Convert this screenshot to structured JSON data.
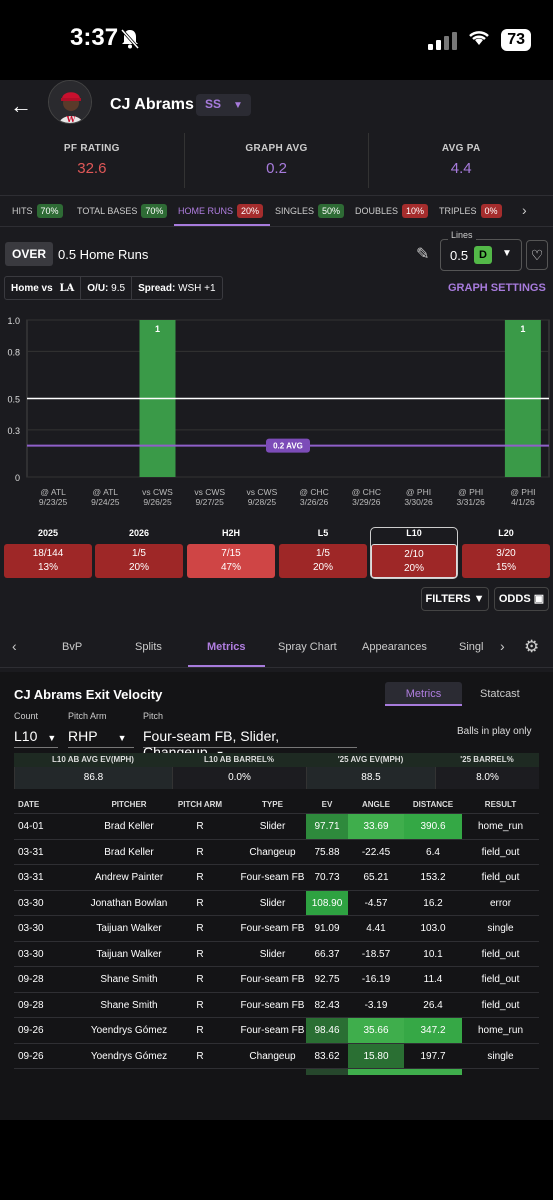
{
  "status": {
    "time": "3:37",
    "battery": "73"
  },
  "player": {
    "name": "CJ Abrams",
    "position": "SS"
  },
  "stats": [
    {
      "label": "PF RATING",
      "value": "32.6",
      "color": "#e05757"
    },
    {
      "label": "GRAPH AVG",
      "value": "0.2",
      "color": "#a77bdc"
    },
    {
      "label": "AVG PA",
      "value": "4.4",
      "color": "#a77bdc"
    }
  ],
  "prop_tabs": [
    {
      "label": "HITS",
      "pct": "70%",
      "tone": "green"
    },
    {
      "label": "TOTAL BASES",
      "pct": "70%",
      "tone": "green"
    },
    {
      "label": "HOME RUNS",
      "pct": "20%",
      "tone": "red",
      "active": true
    },
    {
      "label": "SINGLES",
      "pct": "50%",
      "tone": "green"
    },
    {
      "label": "DOUBLES",
      "pct": "10%",
      "tone": "red"
    },
    {
      "label": "TRIPLES",
      "pct": "0%",
      "tone": "red"
    }
  ],
  "line": {
    "side": "OVER",
    "text": "0.5 Home Runs",
    "lines_label": "Lines",
    "value": "0.5"
  },
  "game": {
    "home": "Home vs",
    "ou_label": "O/U:",
    "ou": "9.5",
    "spread_label": "Spread:",
    "spread": "WSH +1"
  },
  "graph_settings": "GRAPH SETTINGS",
  "chart_data": {
    "type": "bar",
    "categories": [
      "@ ATL 9/23/25",
      "@ ATL 9/24/25",
      "vs CWS 9/26/25",
      "vs CWS 9/27/25",
      "vs CWS 9/28/25",
      "@ CHC 3/26/26",
      "@ CHC 3/29/26",
      "@ PHI 3/30/26",
      "@ PHI 3/31/26",
      "@ PHI 4/1/26"
    ],
    "cat_top": [
      "@ ATL",
      "@ ATL",
      "vs CWS",
      "vs CWS",
      "vs CWS",
      "@ CHC",
      "@ CHC",
      "@ PHI",
      "@ PHI",
      "@ PHI"
    ],
    "cat_bottom": [
      "9/23/25",
      "9/24/25",
      "9/26/25",
      "9/27/25",
      "9/28/25",
      "3/26/26",
      "3/29/26",
      "3/30/26",
      "3/31/26",
      "4/1/26"
    ],
    "values": [
      0,
      0,
      1,
      0,
      0,
      0,
      0,
      0,
      0,
      1
    ],
    "yticks": [
      "0",
      "0.3",
      "0.5",
      "0.8",
      "1.0"
    ],
    "ylim": [
      0,
      1
    ],
    "line_value": 0.5,
    "avg_value": 0.2,
    "avg_label": "0.2 AVG",
    "bar_color": "#3a9a48"
  },
  "summary": [
    {
      "label": "2025",
      "line1": "18/144",
      "line2": "13%",
      "bg": "#9e2727"
    },
    {
      "label": "2026",
      "line1": "1/5",
      "line2": "20%",
      "bg": "#9e2727"
    },
    {
      "label": "H2H",
      "line1": "7/15",
      "line2": "47%",
      "bg": "#cf4545"
    },
    {
      "label": "L5",
      "line1": "1/5",
      "line2": "20%",
      "bg": "#9e2727"
    },
    {
      "label": "L10",
      "line1": "2/10",
      "line2": "20%",
      "bg": "#9e2727",
      "selected": true
    },
    {
      "label": "L20",
      "line1": "3/20",
      "line2": "15%",
      "bg": "#9e2727"
    }
  ],
  "buttons": {
    "filters": "FILTERS",
    "odds": "ODDS"
  },
  "detail_tabs": [
    "BvP",
    "Splits",
    "Metrics",
    "Spray Chart",
    "Appearances",
    "Singl"
  ],
  "ev": {
    "title": "CJ Abrams Exit Velocity",
    "tab_metrics": "Metrics",
    "tab_statcast": "Statcast",
    "count_label": "Count",
    "count": "L10",
    "arm_label": "Pitch Arm",
    "arm": "RHP",
    "pitch_label": "Pitch",
    "pitch": "Four-seam FB, Slider, Changeup",
    "bip": "Balls in play only",
    "sum_headers": [
      "L10 AB AVG EV(MPH)",
      "L10 AB BARREL%",
      "'25 AVG EV(MPH)",
      "'25 BARREL%"
    ],
    "sum_values": [
      "86.8",
      "0.0%",
      "88.5",
      "8.0%"
    ],
    "headers": [
      "DATE",
      "PITCHER",
      "PITCH ARM",
      "TYPE",
      "EV",
      "ANGLE",
      "DISTANCE",
      "RESULT"
    ],
    "rows": [
      [
        "04-01",
        "Brad Keller",
        "R",
        "Slider",
        "97.71",
        "33.69",
        "390.6",
        "home_run"
      ],
      [
        "03-31",
        "Brad Keller",
        "R",
        "Changeup",
        "75.88",
        "-22.45",
        "6.4",
        "field_out"
      ],
      [
        "03-31",
        "Andrew Painter",
        "R",
        "Four-seam FB",
        "70.73",
        "65.21",
        "153.2",
        "field_out"
      ],
      [
        "03-30",
        "Jonathan Bowlan",
        "R",
        "Slider",
        "108.90",
        "-4.57",
        "16.2",
        "error"
      ],
      [
        "03-30",
        "Taijuan Walker",
        "R",
        "Four-seam FB",
        "91.09",
        "4.41",
        "103.0",
        "single"
      ],
      [
        "03-30",
        "Taijuan Walker",
        "R",
        "Slider",
        "66.37",
        "-18.57",
        "10.1",
        "field_out"
      ],
      [
        "09-28",
        "Shane Smith",
        "R",
        "Four-seam FB",
        "92.75",
        "-16.19",
        "11.4",
        "field_out"
      ],
      [
        "09-28",
        "Shane Smith",
        "R",
        "Four-seam FB",
        "82.43",
        "-3.19",
        "26.4",
        "field_out"
      ],
      [
        "09-26",
        "Yoendrys Gómez",
        "R",
        "Four-seam FB",
        "98.46",
        "35.66",
        "347.2",
        "home_run"
      ],
      [
        "09-26",
        "Yoendrys Gómez",
        "R",
        "Changeup",
        "83.62",
        "15.80",
        "197.7",
        "single"
      ]
    ],
    "row_colors": [
      [
        null,
        null,
        null,
        null,
        "#2e8a3c",
        "#3fae4c",
        "#34a845",
        null
      ],
      [
        null,
        null,
        null,
        null,
        null,
        null,
        null,
        null
      ],
      [
        null,
        null,
        null,
        null,
        null,
        null,
        null,
        null
      ],
      [
        null,
        null,
        null,
        null,
        "#2ea241",
        null,
        null,
        null
      ],
      [
        null,
        null,
        null,
        null,
        null,
        null,
        null,
        null
      ],
      [
        null,
        null,
        null,
        null,
        null,
        null,
        null,
        null
      ],
      [
        null,
        null,
        null,
        null,
        null,
        null,
        null,
        null
      ],
      [
        null,
        null,
        null,
        null,
        null,
        null,
        null,
        null
      ],
      [
        null,
        null,
        null,
        null,
        "#2a6f33",
        "#3fae4c",
        "#36a846",
        null
      ],
      [
        null,
        null,
        null,
        null,
        null,
        "#2a6f33",
        null,
        null
      ]
    ]
  }
}
